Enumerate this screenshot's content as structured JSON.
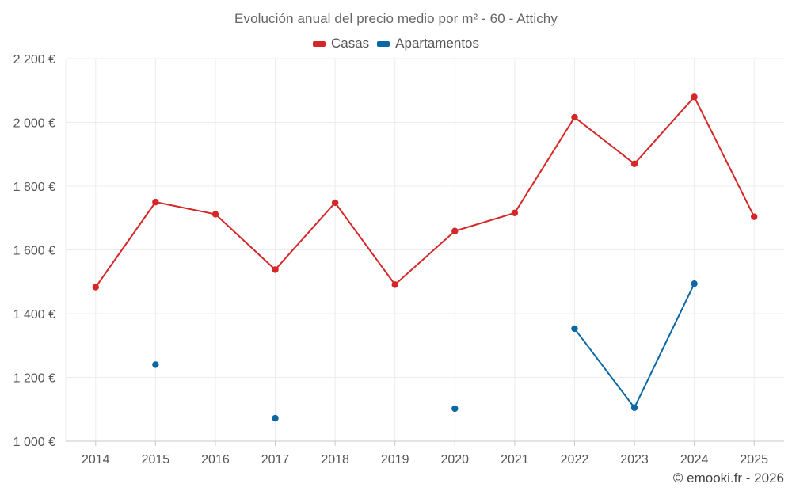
{
  "chart_data": {
    "type": "line",
    "title": "Evolución anual del precio medio por m² - 60 - Attichy",
    "xlabel": "",
    "ylabel": "",
    "categories": [
      "2014",
      "2015",
      "2016",
      "2017",
      "2018",
      "2019",
      "2020",
      "2021",
      "2022",
      "2023",
      "2024",
      "2025"
    ],
    "y_ticks": [
      "1 000 €",
      "1 200 €",
      "1 400 €",
      "1 600 €",
      "1 800 €",
      "2 000 €",
      "2 200 €"
    ],
    "y_tick_values": [
      1000,
      1200,
      1400,
      1600,
      1800,
      2000,
      2200
    ],
    "ylim": [
      1000,
      2200
    ],
    "grid": true,
    "legend_position": "top-center",
    "series": [
      {
        "name": "Casas",
        "color": "#d62728",
        "values": [
          1483,
          1750,
          1712,
          1538,
          1748,
          1491,
          1659,
          1716,
          2016,
          1870,
          2080,
          1704
        ]
      },
      {
        "name": "Apartamentos",
        "color": "#0b67a3",
        "values": [
          null,
          1240,
          null,
          1072,
          null,
          null,
          1102,
          null,
          1353,
          1105,
          1494,
          null
        ]
      }
    ]
  },
  "footer": {
    "copyright": "© emooki.fr - 2026"
  }
}
